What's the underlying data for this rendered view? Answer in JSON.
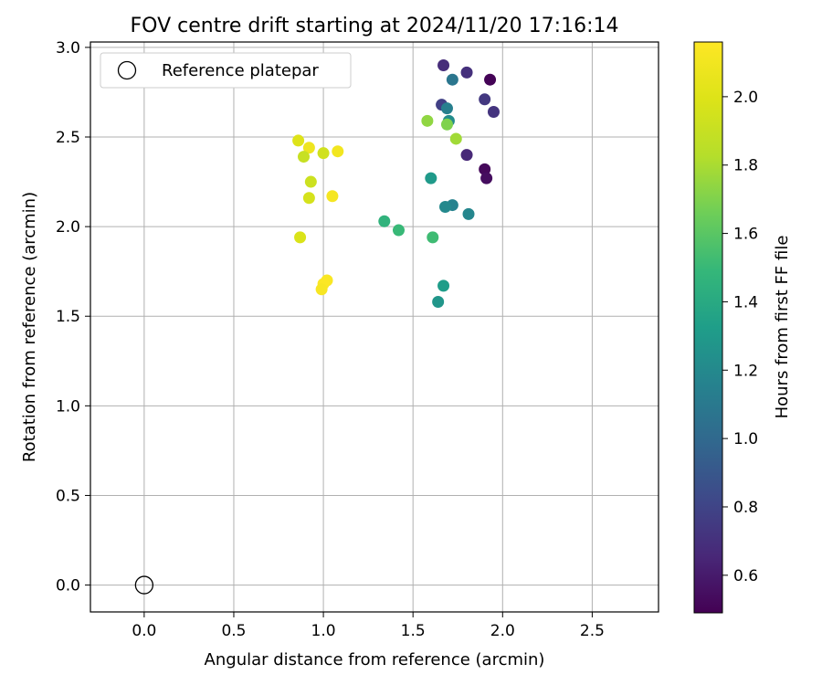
{
  "chart_data": {
    "type": "scatter",
    "title": "FOV centre drift starting at 2024/11/20 17:16:14",
    "xlabel": "Angular distance from reference (arcmin)",
    "ylabel": "Rotation from reference (arcmin)",
    "xlim": [
      -0.3,
      2.87
    ],
    "ylim": [
      -0.15,
      3.03
    ],
    "xticks": [
      0.0,
      0.5,
      1.0,
      1.5,
      2.0,
      2.5
    ],
    "xtick_labels": [
      "0.0",
      "0.5",
      "1.0",
      "1.5",
      "2.0",
      "2.5"
    ],
    "yticks": [
      0.0,
      0.5,
      1.0,
      1.5,
      2.0,
      2.5,
      3.0
    ],
    "ytick_labels": [
      "0.0",
      "0.5",
      "1.0",
      "1.5",
      "2.0",
      "2.5",
      "3.0"
    ],
    "grid": true,
    "legend": {
      "placement": "top-left",
      "entries": [
        "Reference platepar"
      ]
    },
    "reference_point": {
      "x": 0.0,
      "y": 0.0,
      "label": "Reference platepar"
    },
    "colorbar": {
      "label": "Hours from first FF file",
      "min": 0.49,
      "max": 2.16,
      "colormap": "viridis",
      "ticks": [
        0.6,
        0.8,
        1.0,
        1.2,
        1.4,
        1.6,
        1.8,
        2.0
      ],
      "tick_labels": [
        "0.6",
        "0.8",
        "1.0",
        "1.2",
        "1.4",
        "1.6",
        "1.8",
        "2.0"
      ]
    },
    "series": [
      {
        "points": [
          {
            "x": 1.93,
            "y": 2.82,
            "c": 0.5
          },
          {
            "x": 1.9,
            "y": 2.32,
            "c": 0.52
          },
          {
            "x": 1.91,
            "y": 2.27,
            "c": 0.54
          },
          {
            "x": 1.67,
            "y": 2.9,
            "c": 0.68
          },
          {
            "x": 1.8,
            "y": 2.86,
            "c": 0.7
          },
          {
            "x": 1.95,
            "y": 2.64,
            "c": 0.72
          },
          {
            "x": 1.9,
            "y": 2.71,
            "c": 0.74
          },
          {
            "x": 1.8,
            "y": 2.4,
            "c": 0.66
          },
          {
            "x": 1.66,
            "y": 2.68,
            "c": 0.78
          },
          {
            "x": 1.72,
            "y": 2.82,
            "c": 1.08
          },
          {
            "x": 1.69,
            "y": 2.66,
            "c": 1.14
          },
          {
            "x": 1.7,
            "y": 2.59,
            "c": 1.22
          },
          {
            "x": 1.72,
            "y": 2.12,
            "c": 1.16
          },
          {
            "x": 1.68,
            "y": 2.11,
            "c": 1.2
          },
          {
            "x": 1.81,
            "y": 2.07,
            "c": 1.18
          },
          {
            "x": 1.6,
            "y": 2.27,
            "c": 1.3
          },
          {
            "x": 1.67,
            "y": 1.67,
            "c": 1.32
          },
          {
            "x": 1.64,
            "y": 1.58,
            "c": 1.28
          },
          {
            "x": 1.34,
            "y": 2.03,
            "c": 1.46
          },
          {
            "x": 1.42,
            "y": 1.98,
            "c": 1.5
          },
          {
            "x": 1.61,
            "y": 1.94,
            "c": 1.52
          },
          {
            "x": 1.58,
            "y": 2.59,
            "c": 1.74
          },
          {
            "x": 1.69,
            "y": 2.57,
            "c": 1.7
          },
          {
            "x": 1.74,
            "y": 2.49,
            "c": 1.78
          },
          {
            "x": 0.86,
            "y": 2.48,
            "c": 2.0
          },
          {
            "x": 0.92,
            "y": 2.44,
            "c": 2.08
          },
          {
            "x": 0.89,
            "y": 2.39,
            "c": 1.9
          },
          {
            "x": 1.0,
            "y": 2.41,
            "c": 1.94
          },
          {
            "x": 1.08,
            "y": 2.42,
            "c": 2.1
          },
          {
            "x": 0.93,
            "y": 2.25,
            "c": 1.92
          },
          {
            "x": 0.92,
            "y": 2.16,
            "c": 1.96
          },
          {
            "x": 1.05,
            "y": 2.17,
            "c": 2.12
          },
          {
            "x": 0.87,
            "y": 1.94,
            "c": 1.98
          },
          {
            "x": 1.02,
            "y": 1.7,
            "c": 2.14
          },
          {
            "x": 1.0,
            "y": 1.68,
            "c": 2.15
          },
          {
            "x": 0.99,
            "y": 1.65,
            "c": 2.13
          }
        ]
      }
    ]
  }
}
